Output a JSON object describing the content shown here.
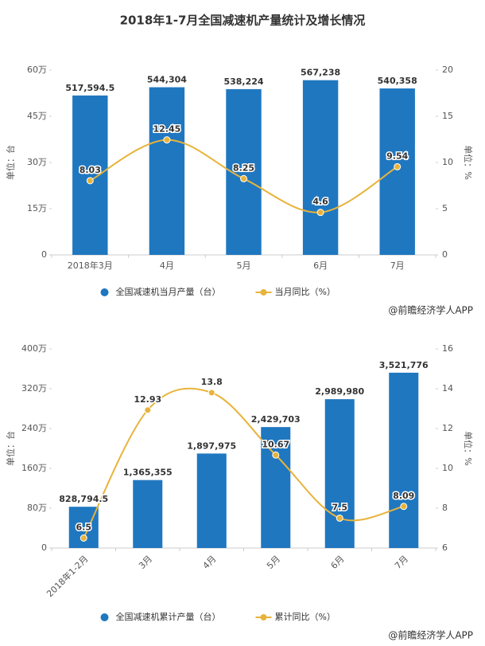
{
  "chart_data": [
    {
      "type": "bar-line",
      "title": "2018年1-7月全国减速机产量统计及增长情况",
      "categories": [
        "2018年3月",
        "4月",
        "5月",
        "6月",
        "7月"
      ],
      "ylabel": "单位：台",
      "y2label": "单位：%",
      "ylim": [
        0,
        600000
      ],
      "yticks": [
        0,
        {
          "value": 150000,
          "label": "15万"
        },
        {
          "value": 300000,
          "label": "30万"
        },
        {
          "value": 450000,
          "label": "45万"
        },
        {
          "value": 600000,
          "label": "60万"
        }
      ],
      "y2lim": [
        0,
        20
      ],
      "y2ticks": [
        0,
        5,
        10,
        15,
        20
      ],
      "series": [
        {
          "name": "全国减速机当月产量（台）",
          "color": "#1f77c0",
          "type": "bar",
          "values": [
            517594.5,
            544304,
            538224,
            567238,
            540358
          ],
          "value_labels": [
            "517,594.5",
            "544,304",
            "538,224",
            "567,238",
            "540,358"
          ]
        },
        {
          "name": "当月同比（%）",
          "color": "#e8b33a",
          "type": "line",
          "axis": "y2",
          "values": [
            8.03,
            12.45,
            8.25,
            4.6,
            9.54
          ]
        }
      ],
      "grid": false,
      "x_label_rotation": 0,
      "source": "@前瞻经济学人APP"
    },
    {
      "type": "bar-line",
      "categories": [
        "2018年1-2月",
        "3月",
        "4月",
        "5月",
        "6月",
        "7月"
      ],
      "ylabel": "单位：台",
      "y2label": "单位：%",
      "ylim": [
        0,
        4000000
      ],
      "yticks": [
        0,
        {
          "value": 800000,
          "label": "80万"
        },
        {
          "value": 1600000,
          "label": "160万"
        },
        {
          "value": 2400000,
          "label": "240万"
        },
        {
          "value": 3200000,
          "label": "320万"
        },
        {
          "value": 4000000,
          "label": "400万"
        }
      ],
      "y2lim": [
        6,
        16
      ],
      "y2ticks": [
        6,
        8,
        10,
        12,
        14,
        16
      ],
      "series": [
        {
          "name": "全国减速机累计产量（台）",
          "color": "#1f77c0",
          "type": "bar",
          "values": [
            828794.5,
            1365355,
            1897975,
            2429703,
            2989980,
            3521776
          ],
          "value_labels": [
            "828,794.5",
            "1,365,355",
            "1,897,975",
            "2,429,703",
            "2,989,980",
            "3,521,776"
          ]
        },
        {
          "name": "累计同比（%）",
          "color": "#e8b33a",
          "type": "line",
          "axis": "y2",
          "values": [
            6.5,
            12.93,
            13.8,
            10.67,
            7.5,
            8.09
          ]
        }
      ],
      "grid": false,
      "x_label_rotation": -45,
      "source": "@前瞻经济学人APP"
    }
  ]
}
